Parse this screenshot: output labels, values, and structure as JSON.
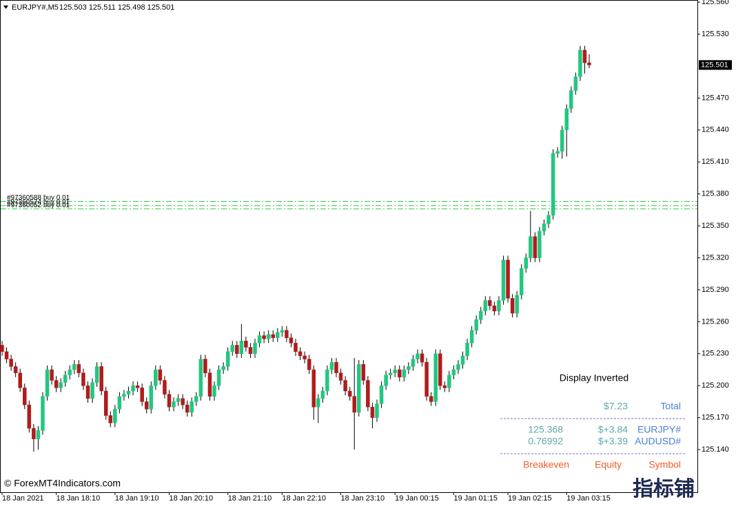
{
  "chart_data": {
    "type": "candlestick",
    "title": "EURJPY#,M5",
    "ohlc_text": "125.503 125.511 125.498 125.501",
    "up_color": "#22c77f",
    "down_color": "#b01c1c",
    "open": [
      125.238,
      125.232,
      125.225,
      125.218,
      125.212,
      125.198,
      125.182,
      125.16,
      125.15,
      125.158,
      125.19,
      125.215,
      125.205,
      125.198,
      125.203,
      125.21,
      125.215,
      125.22,
      125.212,
      125.2,
      125.188,
      125.203,
      125.218,
      125.195,
      125.172,
      125.165,
      125.178,
      125.19,
      125.192,
      125.195,
      125.2,
      125.198,
      125.185,
      125.178,
      125.2,
      125.215,
      125.205,
      125.192,
      125.18,
      125.185,
      125.188,
      125.182,
      125.175,
      125.185,
      125.19,
      125.225,
      125.212,
      125.19,
      125.2,
      125.215,
      125.218,
      125.232,
      125.238,
      125.23,
      125.242,
      125.236,
      125.23,
      125.24,
      125.247,
      125.244,
      125.248,
      125.245,
      125.25,
      125.252,
      125.245,
      125.24,
      125.232,
      125.228,
      125.225,
      125.215,
      125.18,
      125.188,
      125.195,
      125.215,
      125.222,
      125.212,
      125.205,
      125.195,
      125.19,
      125.175,
      125.22,
      125.205,
      125.18,
      125.17,
      125.183,
      125.2,
      125.21,
      125.212,
      125.215,
      125.208,
      125.215,
      125.218,
      125.225,
      125.23,
      125.222,
      125.19,
      125.185,
      125.23,
      125.2,
      125.198,
      125.21,
      125.215,
      125.22,
      125.228,
      125.24,
      125.252,
      125.262,
      125.27,
      125.28,
      125.275,
      125.27,
      125.28,
      125.318,
      125.282,
      125.268,
      125.285,
      125.31,
      125.32,
      125.34,
      125.32,
      125.345,
      125.352,
      125.36,
      125.418,
      125.42,
      125.44,
      125.46,
      125.477,
      125.49,
      125.515,
      125.503
    ],
    "high": [
      125.242,
      125.236,
      125.229,
      125.222,
      125.216,
      125.202,
      125.186,
      125.164,
      125.162,
      125.194,
      125.219,
      125.219,
      125.209,
      125.207,
      125.214,
      125.219,
      125.224,
      125.224,
      125.216,
      125.204,
      125.207,
      125.222,
      125.222,
      125.199,
      125.176,
      125.182,
      125.194,
      125.196,
      125.199,
      125.204,
      125.204,
      125.202,
      125.189,
      125.204,
      125.219,
      125.219,
      125.209,
      125.196,
      125.189,
      125.192,
      125.192,
      125.186,
      125.189,
      125.194,
      125.229,
      125.229,
      125.216,
      125.204,
      125.219,
      125.222,
      125.236,
      125.242,
      125.242,
      125.258,
      125.246,
      125.24,
      125.244,
      125.251,
      125.251,
      125.252,
      125.252,
      125.254,
      125.256,
      125.256,
      125.249,
      125.244,
      125.236,
      125.232,
      125.229,
      125.219,
      125.192,
      125.199,
      125.219,
      125.226,
      125.226,
      125.216,
      125.209,
      125.199,
      125.226,
      125.224,
      125.224,
      125.209,
      125.184,
      125.187,
      125.204,
      125.214,
      125.216,
      125.219,
      125.219,
      125.219,
      125.222,
      125.229,
      125.234,
      125.234,
      125.226,
      125.194,
      125.234,
      125.234,
      125.204,
      125.214,
      125.219,
      125.224,
      125.232,
      125.244,
      125.256,
      125.266,
      125.274,
      125.284,
      125.284,
      125.279,
      125.284,
      125.322,
      125.322,
      125.286,
      125.289,
      125.314,
      125.324,
      125.364,
      125.344,
      125.349,
      125.356,
      125.364,
      125.422,
      125.424,
      125.444,
      125.464,
      125.481,
      125.494,
      125.519,
      125.519,
      125.511
    ],
    "low": [
      125.228,
      125.221,
      125.214,
      125.208,
      125.194,
      125.178,
      125.156,
      125.138,
      125.14,
      125.154,
      125.186,
      125.201,
      125.194,
      125.194,
      125.199,
      125.206,
      125.211,
      125.208,
      125.196,
      125.184,
      125.184,
      125.199,
      125.191,
      125.168,
      125.161,
      125.161,
      125.174,
      125.186,
      125.188,
      125.191,
      125.194,
      125.181,
      125.174,
      125.174,
      125.196,
      125.201,
      125.188,
      125.176,
      125.176,
      125.181,
      125.178,
      125.171,
      125.171,
      125.181,
      125.186,
      125.208,
      125.186,
      125.186,
      125.196,
      125.211,
      125.214,
      125.228,
      125.226,
      125.226,
      125.232,
      125.226,
      125.226,
      125.236,
      125.24,
      125.24,
      125.241,
      125.241,
      125.246,
      125.241,
      125.236,
      125.228,
      125.224,
      125.221,
      125.211,
      125.168,
      125.165,
      125.184,
      125.191,
      125.211,
      125.208,
      125.201,
      125.191,
      125.186,
      125.14,
      125.171,
      125.201,
      125.176,
      125.16,
      125.166,
      125.179,
      125.196,
      125.206,
      125.208,
      125.204,
      125.204,
      125.211,
      125.214,
      125.221,
      125.218,
      125.186,
      125.181,
      125.181,
      125.196,
      125.194,
      125.194,
      125.206,
      125.211,
      125.216,
      125.224,
      125.236,
      125.248,
      125.258,
      125.266,
      125.271,
      125.266,
      125.266,
      125.276,
      125.278,
      125.264,
      125.264,
      125.281,
      125.306,
      125.316,
      125.316,
      125.316,
      125.341,
      125.348,
      125.356,
      125.414,
      125.413,
      125.415,
      125.456,
      125.473,
      125.486,
      125.493,
      125.498
    ],
    "close": [
      125.232,
      125.225,
      125.218,
      125.212,
      125.198,
      125.182,
      125.16,
      125.15,
      125.158,
      125.19,
      125.215,
      125.205,
      125.198,
      125.203,
      125.21,
      125.215,
      125.22,
      125.212,
      125.2,
      125.188,
      125.203,
      125.218,
      125.195,
      125.172,
      125.165,
      125.178,
      125.19,
      125.192,
      125.195,
      125.2,
      125.198,
      125.185,
      125.178,
      125.2,
      125.215,
      125.205,
      125.192,
      125.18,
      125.185,
      125.188,
      125.182,
      125.175,
      125.185,
      125.19,
      125.225,
      125.212,
      125.19,
      125.2,
      125.215,
      125.218,
      125.232,
      125.238,
      125.23,
      125.242,
      125.236,
      125.23,
      125.24,
      125.247,
      125.244,
      125.248,
      125.245,
      125.25,
      125.252,
      125.245,
      125.24,
      125.232,
      125.228,
      125.225,
      125.215,
      125.18,
      125.188,
      125.195,
      125.215,
      125.222,
      125.212,
      125.205,
      125.195,
      125.19,
      125.175,
      125.22,
      125.205,
      125.18,
      125.17,
      125.183,
      125.2,
      125.21,
      125.212,
      125.215,
      125.208,
      125.215,
      125.218,
      125.225,
      125.23,
      125.222,
      125.19,
      125.185,
      125.23,
      125.2,
      125.198,
      125.21,
      125.215,
      125.22,
      125.228,
      125.24,
      125.252,
      125.262,
      125.27,
      125.28,
      125.275,
      125.27,
      125.28,
      125.318,
      125.282,
      125.268,
      125.285,
      125.31,
      125.32,
      125.34,
      125.32,
      125.345,
      125.352,
      125.36,
      125.418,
      125.42,
      125.44,
      125.46,
      125.477,
      125.49,
      125.515,
      125.503,
      125.501
    ],
    "xlim": [
      0,
      130
    ],
    "xticks": [
      {
        "value": 0,
        "label": "18 Jan 2021"
      },
      {
        "value": 12,
        "label": "18 Jan 18:10"
      },
      {
        "value": 25,
        "label": "18 Jan 19:10"
      },
      {
        "value": 37,
        "label": "18 Jan 20:10"
      },
      {
        "value": 50,
        "label": "18 Jan 21:10"
      },
      {
        "value": 62,
        "label": "18 Jan 22:10"
      },
      {
        "value": 75,
        "label": "18 Jan 23:10"
      },
      {
        "value": 87,
        "label": "19 Jan 00:15"
      },
      {
        "value": 100,
        "label": "19 Jan 01:15"
      },
      {
        "value": 112,
        "label": "19 Jan 02:15"
      },
      {
        "value": 125,
        "label": "19 Jan 03:15"
      }
    ],
    "ylim": [
      125.1,
      125.562
    ],
    "yticks": [
      {
        "value": 125.56,
        "label": "125.560"
      },
      {
        "value": 125.53,
        "label": "125.530"
      },
      {
        "value": 125.47,
        "label": "125.470"
      },
      {
        "value": 125.44,
        "label": "125.440"
      },
      {
        "value": 125.41,
        "label": "125.410"
      },
      {
        "value": 125.38,
        "label": "125.380"
      },
      {
        "value": 125.35,
        "label": "125.350"
      },
      {
        "value": 125.32,
        "label": "125.320"
      },
      {
        "value": 125.29,
        "label": "125.290"
      },
      {
        "value": 125.26,
        "label": "125.260"
      },
      {
        "value": 125.23,
        "label": "125.230"
      },
      {
        "value": 125.2,
        "label": "125.200"
      },
      {
        "value": 125.17,
        "label": "125.170"
      },
      {
        "value": 125.14,
        "label": "125.140"
      }
    ],
    "current_price": 125.501,
    "order_color": "#2ec940",
    "orders": [
      {
        "label": "#97360588 buy 0.01",
        "price": 125.373
      },
      {
        "label": "#97360574 buy 0.01",
        "price": 125.369
      },
      {
        "label": "#97360052 buy 0.01",
        "price": 125.366
      }
    ]
  },
  "panel": {
    "title": "Display Inverted",
    "total_value": "$7.23",
    "total_label": "Total",
    "rows": [
      [
        "125.368",
        "$+3.84",
        "EURJPY#"
      ],
      [
        "0.76992",
        "$+3.39",
        "AUDUSD#"
      ]
    ],
    "headers": [
      "Breakeven",
      "Equity",
      "Symbol"
    ]
  },
  "watermark": "© ForexMT4Indicators.com",
  "logo": "指标铺"
}
